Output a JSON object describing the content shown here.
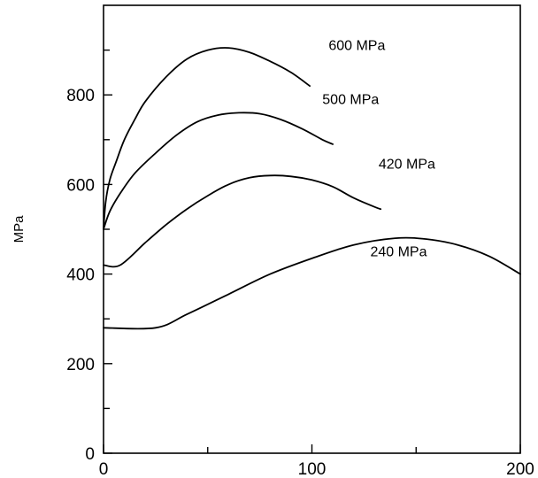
{
  "chart_data": {
    "type": "line",
    "title": "",
    "xlabel": "",
    "ylabel": "MPa",
    "xlim": [
      0,
      200
    ],
    "ylim": [
      0,
      1000
    ],
    "x_ticks": [
      0,
      100,
      200
    ],
    "x_minor_ticks": [
      50,
      150
    ],
    "y_ticks": [
      0,
      200,
      400,
      600,
      800
    ],
    "y_minor_ticks": [
      100,
      300,
      500,
      700,
      900
    ],
    "grid": false,
    "legend": "none",
    "line_color": "#000000",
    "series": [
      {
        "name": "600 MPa",
        "label_at": [
          108,
          900
        ],
        "points": [
          [
            0,
            500
          ],
          [
            1,
            560
          ],
          [
            3,
            610
          ],
          [
            6,
            650
          ],
          [
            10,
            700
          ],
          [
            15,
            745
          ],
          [
            20,
            785
          ],
          [
            30,
            840
          ],
          [
            40,
            880
          ],
          [
            50,
            900
          ],
          [
            60,
            905
          ],
          [
            70,
            895
          ],
          [
            80,
            875
          ],
          [
            90,
            850
          ],
          [
            99,
            820
          ]
        ]
      },
      {
        "name": "500 MPa",
        "label_at": [
          105,
          780
        ],
        "points": [
          [
            0,
            500
          ],
          [
            3,
            540
          ],
          [
            8,
            580
          ],
          [
            15,
            625
          ],
          [
            25,
            670
          ],
          [
            35,
            710
          ],
          [
            45,
            740
          ],
          [
            55,
            755
          ],
          [
            65,
            760
          ],
          [
            75,
            758
          ],
          [
            85,
            745
          ],
          [
            95,
            725
          ],
          [
            105,
            700
          ],
          [
            110,
            690
          ]
        ]
      },
      {
        "name": "420 MPa",
        "label_at": [
          132,
          635
        ],
        "points": [
          [
            0,
            420
          ],
          [
            8,
            420
          ],
          [
            20,
            470
          ],
          [
            30,
            510
          ],
          [
            40,
            545
          ],
          [
            50,
            575
          ],
          [
            60,
            600
          ],
          [
            70,
            615
          ],
          [
            80,
            620
          ],
          [
            90,
            618
          ],
          [
            100,
            610
          ],
          [
            110,
            595
          ],
          [
            120,
            570
          ],
          [
            130,
            550
          ],
          [
            133,
            545
          ]
        ]
      },
      {
        "name": "240 MPa",
        "label_at": [
          128,
          440
        ],
        "points": [
          [
            0,
            280
          ],
          [
            25,
            280
          ],
          [
            40,
            310
          ],
          [
            60,
            355
          ],
          [
            80,
            400
          ],
          [
            100,
            435
          ],
          [
            120,
            465
          ],
          [
            140,
            480
          ],
          [
            155,
            478
          ],
          [
            170,
            465
          ],
          [
            185,
            440
          ],
          [
            200,
            400
          ]
        ]
      }
    ]
  }
}
